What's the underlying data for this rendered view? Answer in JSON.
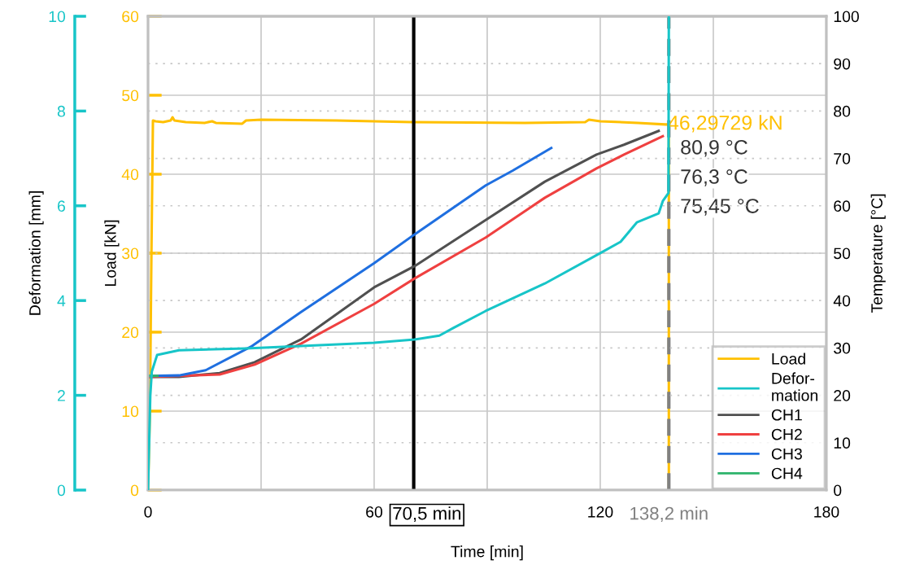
{
  "chart_data": {
    "type": "line",
    "xlabel": "Time [min]",
    "ylabel": "Load [kN]",
    "y2label": "Temperature [°C]",
    "y3label": "Deformation [mm]",
    "xlim": [
      0,
      180
    ],
    "xticks": [
      0,
      {
        "value": 30,
        "label": null
      },
      60,
      {
        "value": 90,
        "label": null
      },
      120,
      {
        "value": 150,
        "label": null
      },
      180
    ],
    "ylim": [
      0,
      60
    ],
    "yticks": [
      0,
      10,
      20,
      30,
      40,
      50,
      60
    ],
    "y2lim": [
      0,
      100
    ],
    "y2ticks": [
      0,
      10,
      20,
      30,
      40,
      50,
      60,
      70,
      80,
      90,
      100
    ],
    "y3lim": [
      0,
      10
    ],
    "y3ticks": [
      0,
      2,
      4,
      6,
      8,
      10
    ],
    "grid": true,
    "legend": "bottom right",
    "marker": "none",
    "line_style": "solid",
    "series": [
      {
        "name": "Load",
        "color": "#ffc000",
        "axis": "y",
        "x": [
          0,
          0.5,
          0.9,
          1.3,
          2,
          4,
          6,
          6.5,
          7,
          10,
          15,
          17,
          18,
          25,
          26,
          30,
          50,
          70,
          100,
          116,
          117,
          120,
          130,
          137.3,
          138.2,
          138.2
        ],
        "values": [
          0,
          10,
          30,
          46.8,
          46.7,
          46.6,
          46.8,
          47.2,
          46.8,
          46.6,
          46.5,
          46.7,
          46.5,
          46.4,
          46.8,
          46.9,
          46.8,
          46.6,
          46.5,
          46.6,
          46.9,
          46.7,
          46.5,
          46.3,
          46.3,
          0
        ]
      },
      {
        "name": "Defor-\nmation",
        "color": "#17c5c8",
        "axis": "y3",
        "x": [
          0,
          0.3,
          0.6,
          1,
          2.4,
          8.2,
          26,
          60,
          70.8,
          77.3,
          81,
          89.6,
          105.3,
          120.4,
          125.4,
          129.7,
          135.5,
          136.6,
          138.1,
          138.2
        ],
        "values": [
          0,
          1,
          2,
          2.5,
          2.85,
          2.95,
          2.99,
          3.11,
          3.18,
          3.26,
          3.42,
          3.78,
          4.36,
          5.02,
          5.24,
          5.65,
          5.84,
          6.1,
          6.27,
          10
        ]
      },
      {
        "name": "CH1",
        "color": "#505050",
        "axis": "y2",
        "x": [
          0.3,
          8.2,
          19,
          28.3,
          40.6,
          60,
          70.8,
          89.6,
          105.3,
          119,
          126.3,
          135.5
        ],
        "values": [
          23.9,
          23.9,
          24.7,
          27,
          31.8,
          42.8,
          47.3,
          57,
          65.1,
          70.8,
          72.9,
          75.8
        ]
      },
      {
        "name": "CH2",
        "color": "#ef4040",
        "axis": "y2",
        "x": [
          0.3,
          19,
          28.3,
          40.6,
          60,
          70.8,
          89.6,
          105.3,
          119,
          126.3,
          136.6
        ],
        "values": [
          23.9,
          24.4,
          26.5,
          30.9,
          39.3,
          44.7,
          53.3,
          61.7,
          67.9,
          70.8,
          74.7
        ]
      },
      {
        "name": "CH3",
        "color": "#1f6fe0",
        "axis": "y2",
        "x": [
          0.3,
          8.2,
          15.3,
          27.6,
          40.6,
          60,
          70.8,
          89.6,
          96.7,
          107
        ],
        "values": [
          24.1,
          24.2,
          25.3,
          30.4,
          37.6,
          47.9,
          54,
          64.3,
          67.4,
          72.2
        ]
      },
      {
        "name": "CH4",
        "color": "#2db36b",
        "axis": "y2",
        "x": [
          0.3,
          2.5
        ],
        "values": [
          24.1,
          24.1
        ]
      }
    ],
    "ref_lines": [
      {
        "axis": "x",
        "value": 70.5,
        "label": "70,5 min",
        "color": "#000000",
        "line_style": "solid"
      },
      {
        "axis": "x",
        "value": 138.2,
        "label": "138,2 min",
        "color": "#808080",
        "line_style": "dashed"
      }
    ],
    "annotations": [
      {
        "text": "46,29729 kN",
        "x": 137.3,
        "y": 46.3
      },
      "80,9 °C",
      "76,3 °C",
      "75,45 °C"
    ]
  }
}
